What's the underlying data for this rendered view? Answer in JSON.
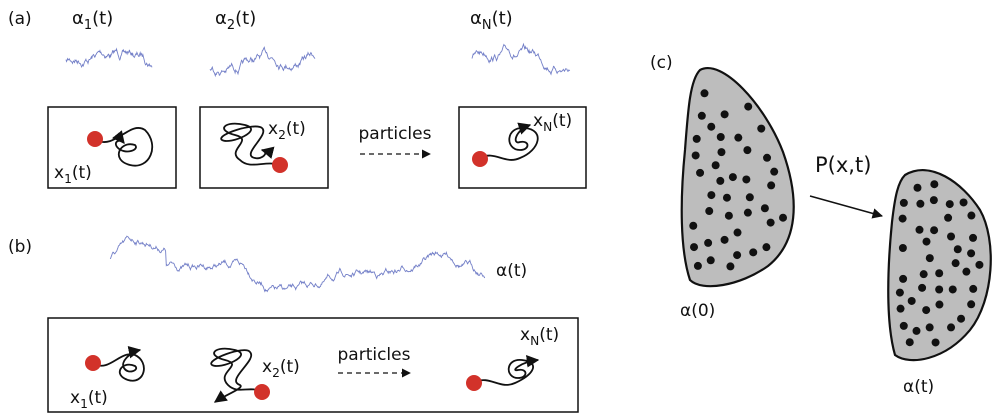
{
  "panel_a": {
    "label": "(a)",
    "signals": [
      {
        "base": "α",
        "sub": "1",
        "tail": "(t)"
      },
      {
        "base": "α",
        "sub": "2",
        "tail": "(t)"
      },
      {
        "base": "α",
        "sub": "N",
        "tail": "(t)"
      }
    ],
    "particles": [
      {
        "base": "x",
        "sub": "1",
        "tail": "(t)"
      },
      {
        "base": "x",
        "sub": "2",
        "tail": "(t)"
      },
      {
        "base": "x",
        "sub": "N",
        "tail": "(t)"
      }
    ],
    "arrow_label": "particles"
  },
  "panel_b": {
    "label": "(b)",
    "signal": "α(t)",
    "particles": [
      {
        "base": "x",
        "sub": "1",
        "tail": "(t)"
      },
      {
        "base": "x",
        "sub": "2",
        "tail": "(t)"
      },
      {
        "base": "x",
        "sub": "N",
        "tail": "(t)"
      }
    ],
    "arrow_label": "particles"
  },
  "panel_c": {
    "label": "(c)",
    "map_label": "P(x,t)",
    "initial_label": "α(0)",
    "final_label": "α(t)"
  }
}
